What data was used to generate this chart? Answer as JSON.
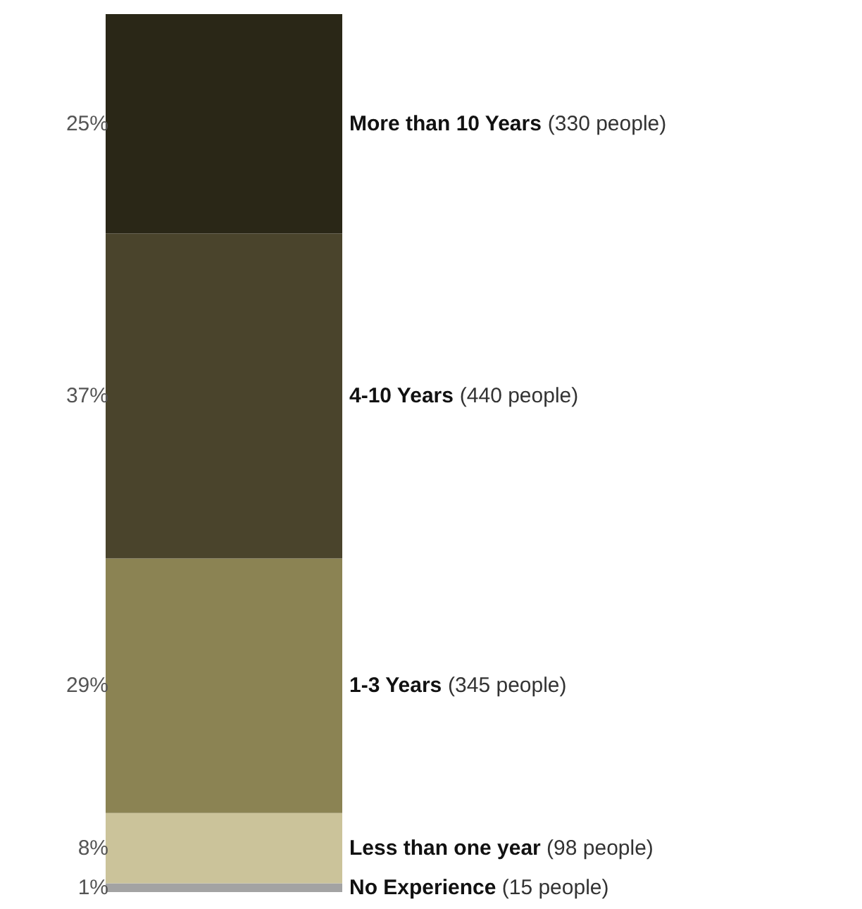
{
  "chart_data": {
    "type": "bar",
    "stacked": true,
    "categories": [
      null
    ],
    "series": [
      {
        "name": "No Experience (15 people)",
        "color": "#a3a3a3",
        "values": [
          1
        ],
        "value_labels": [
          "1%"
        ]
      },
      {
        "name": "Less than one year (98 people)",
        "color": "#cbc39a",
        "values": [
          8
        ],
        "value_labels": [
          "8%"
        ]
      },
      {
        "name": "1-3 Years (345 people)",
        "color": "#8b8353",
        "values": [
          29
        ],
        "value_labels": [
          "29%"
        ]
      },
      {
        "name": "4-10 Years (440 people)",
        "color": "#4a442c",
        "values": [
          37
        ],
        "value_labels": [
          "37%"
        ]
      },
      {
        "name": "More than 10 Years (330 people)",
        "color": "#2a2717",
        "values": [
          25
        ],
        "value_labels": [
          "25%"
        ]
      }
    ]
  }
}
